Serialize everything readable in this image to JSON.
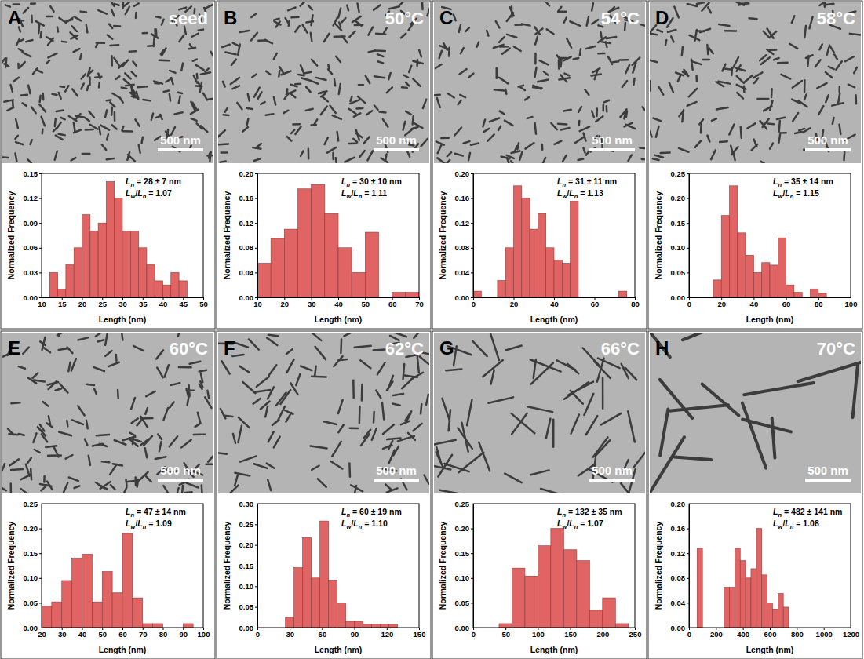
{
  "chart_data": [
    {
      "type": "histogram",
      "panel": "A",
      "title": "seed",
      "scale_bar": "500 nm",
      "annotations": [
        "Ln = 28 ± 7 nm",
        "Lw/Ln = 1.07"
      ],
      "x_label": "Length (nm)",
      "y_label": "Normalized Frequency",
      "color": "#e06464",
      "bins": [
        12,
        14,
        16,
        18,
        20,
        22,
        24,
        26,
        28,
        30,
        32,
        34,
        36,
        38,
        40,
        42,
        44,
        46
      ],
      "values": [
        0.03,
        0.01,
        0.04,
        0.06,
        0.1,
        0.08,
        0.09,
        0.14,
        0.12,
        0.08,
        0.08,
        0.06,
        0.04,
        0.02,
        0.015,
        0.03,
        0.02
      ],
      "xlim": [
        10,
        50
      ],
      "xticks": [
        10,
        15,
        20,
        25,
        30,
        35,
        40,
        45,
        50
      ],
      "ylim": [
        0,
        0.15
      ],
      "yticks": [
        {
          "value": 0,
          "label": "0.00"
        },
        0.03,
        0.06,
        0.09,
        0.12,
        0.15
      ]
    },
    {
      "type": "histogram",
      "panel": "B",
      "title": "50°C",
      "scale_bar": "500 nm",
      "annotations": [
        "Ln = 30 ± 10 nm",
        "Lw/Ln = 1.11"
      ],
      "x_label": "Length (nm)",
      "y_label": "Normalized Frequency",
      "color": "#e06464",
      "bins": [
        10,
        15,
        20,
        25,
        30,
        35,
        40,
        45,
        50,
        55,
        60,
        65,
        70
      ],
      "values": [
        0.055,
        0.095,
        0.11,
        0.175,
        0.182,
        0.135,
        0.08,
        0.04,
        0.105,
        0,
        0.008,
        0.008
      ],
      "xlim": [
        10,
        70
      ],
      "xticks": [
        10,
        20,
        30,
        40,
        50,
        60,
        70
      ],
      "ylim": [
        0,
        0.2
      ],
      "yticks": [
        {
          "value": 0,
          "label": "0.00"
        },
        0.04,
        0.08,
        0.12,
        0.16,
        {
          "value": 0.2,
          "label": "0.20"
        }
      ]
    },
    {
      "type": "histogram",
      "panel": "C",
      "title": "54°C",
      "scale_bar": "500 nm",
      "annotations": [
        "Ln = 31 ± 11 nm",
        "Lw/Ln = 1.13"
      ],
      "x_label": "Length (nm)",
      "y_label": "Normalized Frequency",
      "color": "#e06464",
      "bins": [
        0,
        4,
        8,
        12,
        16,
        20,
        24,
        28,
        32,
        36,
        40,
        44,
        48,
        52,
        56,
        60,
        64,
        68,
        72,
        76
      ],
      "values": [
        0.01,
        0,
        0,
        0.027,
        0.08,
        0.18,
        0.16,
        0.11,
        0.135,
        0.08,
        0.06,
        0.055,
        0.155,
        0,
        0,
        0,
        0,
        0,
        0.01
      ],
      "xlim": [
        0,
        80
      ],
      "xticks": [
        0,
        20,
        40,
        60,
        80
      ],
      "ylim": [
        0,
        0.2
      ],
      "yticks": [
        {
          "value": 0,
          "label": "0.00"
        },
        0.04,
        0.08,
        0.12,
        0.16,
        {
          "value": 0.2,
          "label": "0.20"
        }
      ]
    },
    {
      "type": "histogram",
      "panel": "D",
      "title": "58°C",
      "scale_bar": "500 nm",
      "annotations": [
        "Ln = 35 ± 14 nm",
        "Lw/Ln = 1.15"
      ],
      "x_label": "Length (nm)",
      "y_label": "Normalized Frequency",
      "color": "#e06464",
      "bins": [
        15,
        20,
        25,
        30,
        35,
        40,
        45,
        50,
        55,
        60,
        65,
        70,
        75,
        80,
        85
      ],
      "values": [
        0.035,
        0.165,
        0.225,
        0.13,
        0.085,
        0.05,
        0.07,
        0.065,
        0.12,
        0.025,
        0.01,
        0,
        0.017,
        0.008
      ],
      "xlim": [
        0,
        100
      ],
      "xticks": [
        0,
        20,
        40,
        60,
        80,
        100
      ],
      "ylim": [
        0,
        0.25
      ],
      "yticks": [
        {
          "value": 0,
          "label": "0.00"
        },
        0.05,
        {
          "value": 0.1,
          "label": "0.10"
        },
        0.15,
        {
          "value": 0.2,
          "label": "0.20"
        },
        0.25
      ]
    },
    {
      "type": "histogram",
      "panel": "E",
      "title": "60°C",
      "scale_bar": "500 nm",
      "annotations": [
        "Ln = 47 ± 14 nm",
        "Lw/Ln = 1.09"
      ],
      "x_label": "Length (nm)",
      "y_label": "Normalized Frequency",
      "color": "#e06464",
      "bins": [
        20,
        25,
        30,
        35,
        40,
        45,
        50,
        55,
        60,
        65,
        70,
        75,
        80,
        85,
        90,
        95
      ],
      "values": [
        0.043,
        0.052,
        0.095,
        0.14,
        0.148,
        0.052,
        0.113,
        0.07,
        0.19,
        0.06,
        0.008,
        0.008,
        0,
        0,
        0.008
      ],
      "xlim": [
        20,
        100
      ],
      "xticks": [
        20,
        30,
        40,
        50,
        60,
        70,
        80,
        90,
        100
      ],
      "ylim": [
        0,
        0.25
      ],
      "yticks": [
        {
          "value": 0,
          "label": "0.00"
        },
        0.05,
        {
          "value": 0.1,
          "label": "0.10"
        },
        0.15,
        {
          "value": 0.2,
          "label": "0.20"
        },
        0.25
      ]
    },
    {
      "type": "histogram",
      "panel": "F",
      "title": "62°C",
      "scale_bar": "500 nm",
      "annotations": [
        "Ln = 60 ± 19 nm",
        "Lw/Ln = 1.10"
      ],
      "x_label": "Length (nm)",
      "y_label": "Normalized Frequency",
      "color": "#e06464",
      "bins": [
        26,
        34,
        42,
        50,
        58,
        66,
        74,
        82,
        90,
        98,
        106,
        114,
        122,
        130
      ],
      "values": [
        0.025,
        0.145,
        0.218,
        0.12,
        0.258,
        0.115,
        0.06,
        0.015,
        0.015,
        0.008,
        0.008,
        0.008,
        0.008
      ],
      "xlim": [
        0,
        150
      ],
      "xticks": [
        0,
        30,
        60,
        90,
        120,
        150
      ],
      "ylim": [
        0,
        0.3
      ],
      "yticks": [
        {
          "value": 0,
          "label": "0.00"
        },
        0.05,
        {
          "value": 0.1,
          "label": "0.10"
        },
        0.15,
        {
          "value": 0.2,
          "label": "0.20"
        },
        0.25,
        {
          "value": 0.3,
          "label": "0.30"
        }
      ]
    },
    {
      "type": "histogram",
      "panel": "G",
      "title": "66°C",
      "scale_bar": "500 nm",
      "annotations": [
        "Ln = 132 ± 35 nm",
        "Lw/Ln = 1.07"
      ],
      "x_label": "Length (nm)",
      "y_label": "Normalized Frequency",
      "color": "#e06464",
      "bins": [
        40,
        60,
        80,
        100,
        120,
        140,
        160,
        180,
        200,
        220,
        240
      ],
      "values": [
        0.008,
        0.12,
        0.104,
        0.165,
        0.2,
        0.157,
        0.135,
        0.035,
        0.06,
        0.008
      ],
      "xlim": [
        0,
        250
      ],
      "xticks": [
        0,
        50,
        100,
        150,
        200,
        250
      ],
      "ylim": [
        0,
        0.25
      ],
      "yticks": [
        {
          "value": 0,
          "label": "0.00"
        },
        0.05,
        {
          "value": 0.1,
          "label": "0.10"
        },
        0.15,
        {
          "value": 0.2,
          "label": "0.20"
        },
        0.25
      ]
    },
    {
      "type": "histogram",
      "panel": "H",
      "title": "70°C",
      "scale_bar": "500 nm",
      "annotations": [
        "Ln = 482 ± 141 nm",
        "Lw/Ln = 1.08"
      ],
      "x_label": "Length (nm)",
      "y_label": "Normalized Frequency",
      "color": "#e06464",
      "bins": [
        60,
        100,
        140,
        180,
        220,
        260,
        300,
        340,
        380,
        420,
        460,
        500,
        540,
        580,
        620,
        660,
        700,
        740
      ],
      "values": [
        0.128,
        0,
        0,
        0,
        0,
        0.065,
        0.065,
        0.128,
        0.108,
        0.08,
        0.095,
        0.16,
        0.085,
        0.04,
        0.03,
        0.055,
        0.033
      ],
      "xlim": [
        0,
        1200
      ],
      "xticks": [
        0,
        200,
        400,
        600,
        800,
        1000,
        1200
      ],
      "ylim": [
        0,
        0.2
      ],
      "yticks": [
        {
          "value": 0,
          "label": "0.00"
        },
        0.04,
        0.08,
        0.12,
        0.16,
        {
          "value": 0.2,
          "label": "0.20"
        }
      ]
    }
  ]
}
